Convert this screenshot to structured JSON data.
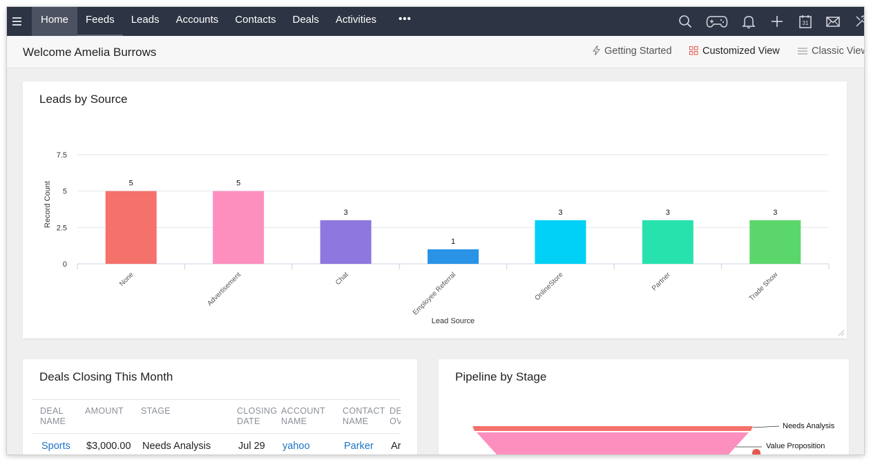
{
  "nav": {
    "items": [
      {
        "label": "Home"
      },
      {
        "label": "Feeds"
      },
      {
        "label": "Leads"
      },
      {
        "label": "Accounts"
      },
      {
        "label": "Contacts"
      },
      {
        "label": "Deals"
      },
      {
        "label": "Activities"
      }
    ],
    "more": "•••"
  },
  "calendar_day": "31",
  "header": {
    "welcome": "Welcome Amelia Burrows",
    "views": {
      "getting_started": "Getting Started",
      "customized": "Customized View",
      "classic": "Classic View"
    }
  },
  "leads_card": {
    "title": "Leads by Source"
  },
  "chart_data": {
    "type": "bar",
    "title": "Leads by Source",
    "xlabel": "Lead Source",
    "ylabel": "Record Count",
    "categories": [
      "None",
      "Advertisement",
      "Chat",
      "Employee Referral",
      "OnlineStore",
      "Partner",
      "Trade Show"
    ],
    "values": [
      5,
      5,
      3,
      1,
      3,
      3,
      3
    ],
    "colors": [
      "#f4716c",
      "#fd8fbf",
      "#8e78e0",
      "#2a93e6",
      "#00d0f6",
      "#27e2ad",
      "#5bd66b"
    ],
    "yticks": [
      "0",
      "2.5",
      "5",
      "7.5"
    ],
    "ylim": [
      0,
      7.5
    ],
    "grid": true
  },
  "deals_card": {
    "title": "Deals Closing This Month",
    "columns": [
      {
        "line1": "DEAL",
        "line2": "NAME"
      },
      {
        "line1": "AMOUNT",
        "line2": ""
      },
      {
        "line1": "STAGE",
        "line2": ""
      },
      {
        "line1": "CLOSING",
        "line2": "DATE"
      },
      {
        "line1": "ACCOUNT",
        "line2": "NAME"
      },
      {
        "line1": "CONTACT",
        "line2": "NAME"
      },
      {
        "line1": "DE",
        "line2": "OV"
      }
    ],
    "rows": [
      [
        "Sports",
        "$3,000.00",
        "Needs Analysis",
        "Jul 29",
        "yahoo",
        "Parker",
        "Ar"
      ]
    ]
  },
  "pipeline_card": {
    "title": "Pipeline by Stage",
    "stages": [
      "Needs Analysis",
      "Value Proposition"
    ],
    "colors": [
      "#f4716c",
      "#fd8fbf"
    ]
  },
  "colors": {
    "topbar": "#2d3444",
    "nav_active": "#4c5262",
    "link": "#1a73c7",
    "customized_icon": "#e5554f"
  }
}
